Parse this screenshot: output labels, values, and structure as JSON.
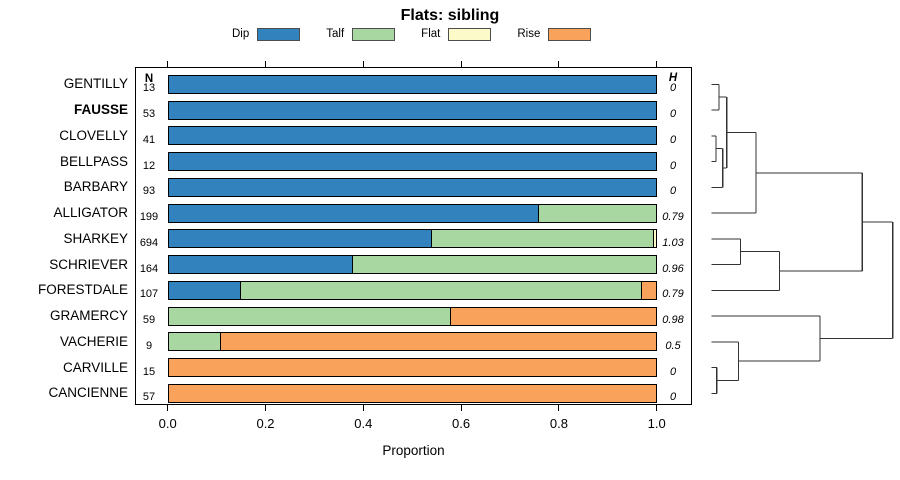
{
  "chart_data": {
    "type": "bar",
    "orientation": "horizontal",
    "stacked": true,
    "title": "Flats: sibling",
    "xlabel": "Proportion",
    "xlim": [
      0,
      1
    ],
    "x_ticks": [
      "0.0",
      "0.2",
      "0.4",
      "0.6",
      "0.8",
      "1.0"
    ],
    "n_header": "N",
    "h_header": "H",
    "legend_position": "top",
    "series": [
      {
        "name": "Dip",
        "color": "#3182BD"
      },
      {
        "name": "Talf",
        "color": "#A8D7A1"
      },
      {
        "name": "Flat",
        "color": "#FBFAC8"
      },
      {
        "name": "Rise",
        "color": "#F9A25B"
      }
    ],
    "rows": [
      {
        "label": "GENTILLY",
        "bold": false,
        "n": 13,
        "h": "0",
        "segments": [
          {
            "series": "Dip",
            "value": 1.0
          }
        ]
      },
      {
        "label": "FAUSSE",
        "bold": true,
        "n": 53,
        "h": "0",
        "segments": [
          {
            "series": "Dip",
            "value": 1.0
          }
        ]
      },
      {
        "label": "CLOVELLY",
        "bold": false,
        "n": 41,
        "h": "0",
        "segments": [
          {
            "series": "Dip",
            "value": 1.0
          }
        ]
      },
      {
        "label": "BELLPASS",
        "bold": false,
        "n": 12,
        "h": "0",
        "segments": [
          {
            "series": "Dip",
            "value": 1.0
          }
        ]
      },
      {
        "label": "BARBARY",
        "bold": false,
        "n": 93,
        "h": "0",
        "segments": [
          {
            "series": "Dip",
            "value": 1.0
          }
        ]
      },
      {
        "label": "ALLIGATOR",
        "bold": false,
        "n": 199,
        "h": "0.79",
        "segments": [
          {
            "series": "Dip",
            "value": 0.76
          },
          {
            "series": "Talf",
            "value": 0.24
          }
        ]
      },
      {
        "label": "SHARKEY",
        "bold": false,
        "n": 694,
        "h": "1.03",
        "segments": [
          {
            "series": "Dip",
            "value": 0.54
          },
          {
            "series": "Talf",
            "value": 0.455
          },
          {
            "series": "Flat",
            "value": 0.005
          }
        ]
      },
      {
        "label": "SCHRIEVER",
        "bold": false,
        "n": 164,
        "h": "0.96",
        "segments": [
          {
            "series": "Dip",
            "value": 0.38
          },
          {
            "series": "Talf",
            "value": 0.62
          }
        ]
      },
      {
        "label": "FORESTDALE",
        "bold": false,
        "n": 107,
        "h": "0.79",
        "segments": [
          {
            "series": "Dip",
            "value": 0.15
          },
          {
            "series": "Talf",
            "value": 0.82
          },
          {
            "series": "Rise",
            "value": 0.03
          }
        ]
      },
      {
        "label": "GRAMERCY",
        "bold": false,
        "n": 59,
        "h": "0.98",
        "segments": [
          {
            "series": "Talf",
            "value": 0.58
          },
          {
            "series": "Rise",
            "value": 0.42
          }
        ]
      },
      {
        "label": "VACHERIE",
        "bold": false,
        "n": 9,
        "h": "0.5",
        "segments": [
          {
            "series": "Talf",
            "value": 0.11
          },
          {
            "series": "Rise",
            "value": 0.89
          }
        ]
      },
      {
        "label": "CARVILLE",
        "bold": false,
        "n": 15,
        "h": "0",
        "segments": [
          {
            "series": "Rise",
            "value": 1.0
          }
        ]
      },
      {
        "label": "CANCIENNE",
        "bold": false,
        "n": 57,
        "h": "0",
        "segments": [
          {
            "series": "Rise",
            "value": 1.0
          }
        ]
      }
    ],
    "dendrogram": {
      "leaves": [
        "GENTILLY",
        "FAUSSE",
        "CLOVELLY",
        "BELLPASS",
        "BARBARY",
        "ALLIGATOR",
        "SHARKEY",
        "SCHRIEVER",
        "FORESTDALE",
        "GRAMERCY",
        "VACHERIE",
        "CARVILLE",
        "CANCIENNE"
      ],
      "merges": [
        {
          "id": "M0",
          "children": [
            "L0",
            "L1"
          ],
          "height": 0.04
        },
        {
          "id": "M1",
          "children": [
            "L2",
            "L3"
          ],
          "height": 0.024
        },
        {
          "id": "M2",
          "children": [
            "M1",
            "L4"
          ],
          "height": 0.061
        },
        {
          "id": "M3",
          "children": [
            "M0",
            "M2"
          ],
          "height": 0.083
        },
        {
          "id": "M4",
          "children": [
            "M3",
            "L5"
          ],
          "height": 0.245
        },
        {
          "id": "M5",
          "children": [
            "L6",
            "L7"
          ],
          "height": 0.16
        },
        {
          "id": "M6",
          "children": [
            "M5",
            "L8"
          ],
          "height": 0.374
        },
        {
          "id": "M7",
          "children": [
            "M4",
            "M6"
          ],
          "height": 0.832
        },
        {
          "id": "M8",
          "children": [
            "L11",
            "L12"
          ],
          "height": 0.028
        },
        {
          "id": "M9",
          "children": [
            "M8",
            "L10"
          ],
          "height": 0.147
        },
        {
          "id": "M10",
          "children": [
            "M9",
            "L9"
          ],
          "height": 0.599
        },
        {
          "id": "M11",
          "children": [
            "M7",
            "M10"
          ],
          "height": 1.0
        }
      ]
    }
  }
}
